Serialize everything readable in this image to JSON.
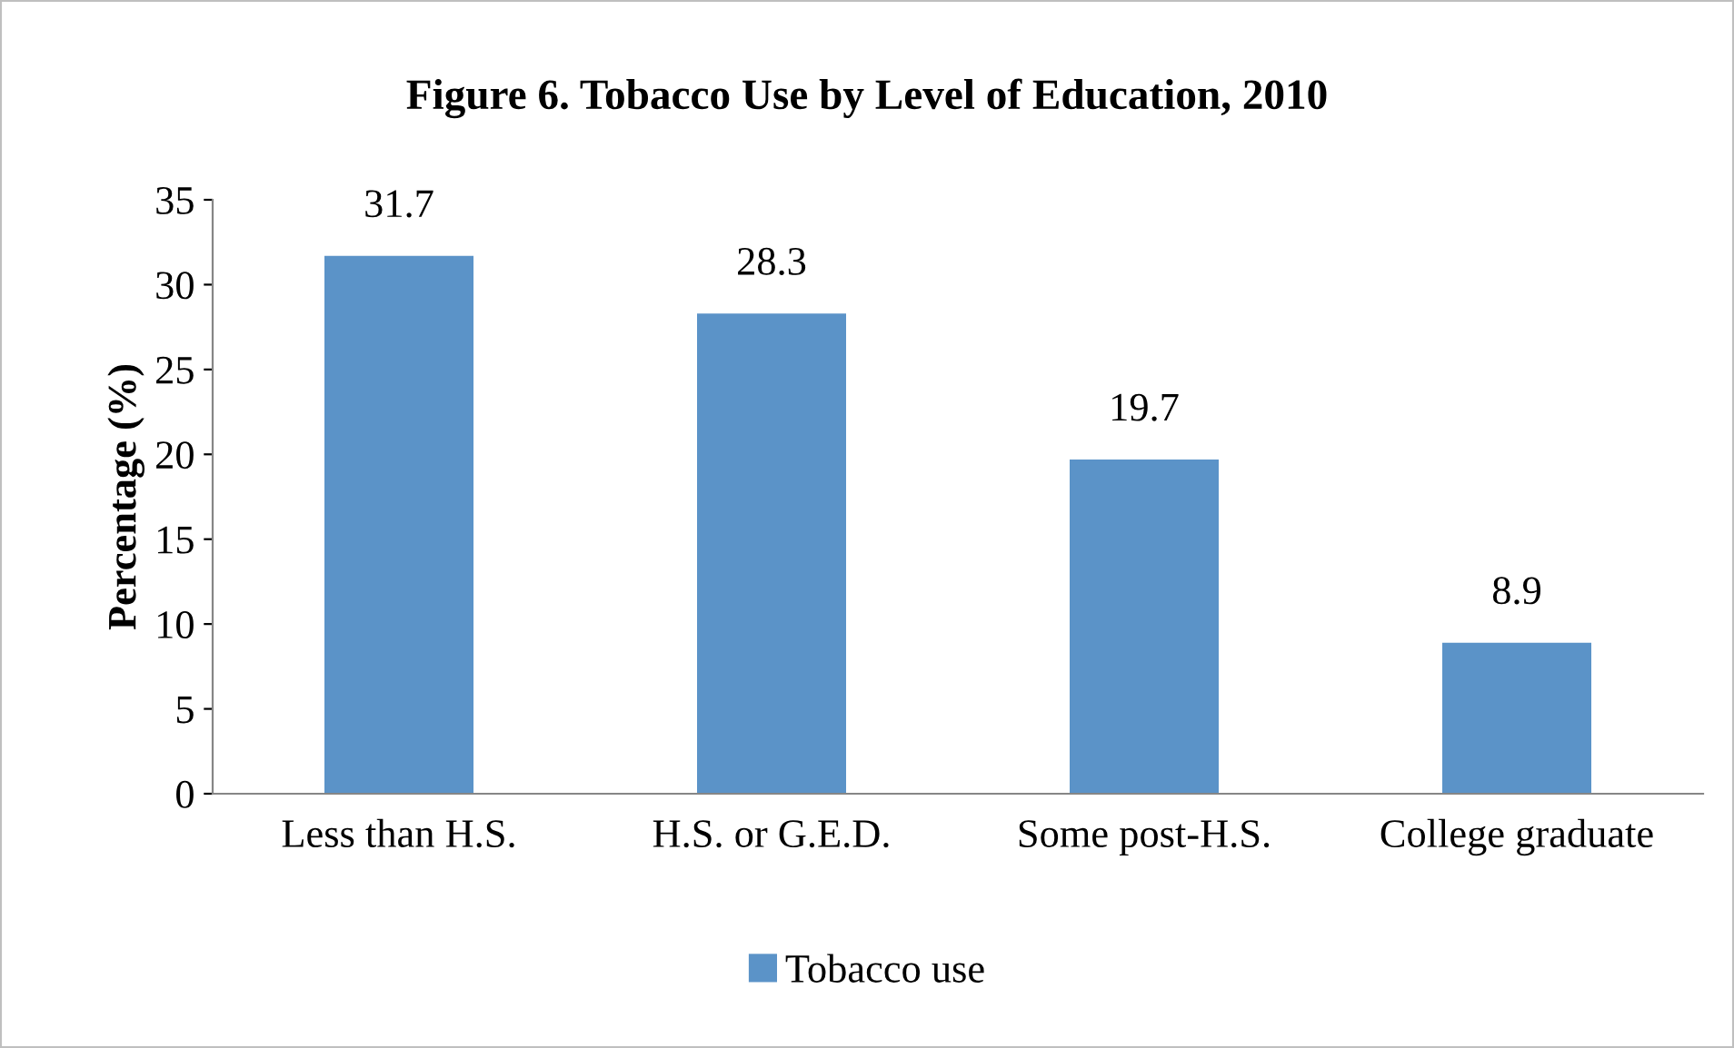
{
  "chart_data": {
    "type": "bar",
    "title": "Figure 6. Tobacco Use by Level of Education, 2010",
    "ylabel": "Percentage (%)",
    "categories": [
      "Less than H.S.",
      "H.S. or G.E.D.",
      "Some post-H.S.",
      "College graduate"
    ],
    "series": [
      {
        "name": "Tobacco use",
        "color": "#5b93c8",
        "values": [
          31.7,
          28.3,
          19.7,
          8.9
        ]
      }
    ],
    "ylim": [
      0,
      35
    ],
    "yticks": [
      0,
      5,
      10,
      15,
      20,
      25,
      30,
      35
    ],
    "data_labels": true,
    "grid": false,
    "legend": "bottom"
  }
}
